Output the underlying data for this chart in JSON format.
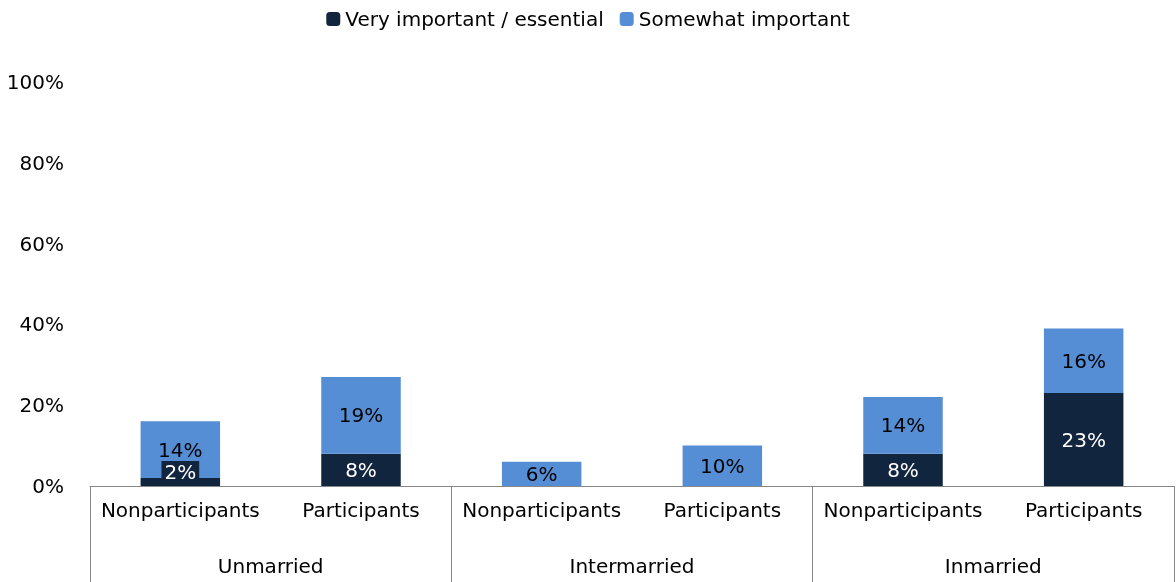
{
  "chart_data": {
    "type": "bar",
    "stacked": true,
    "categories": [
      "Nonparticipants",
      "Participants",
      "Nonparticipants",
      "Participants",
      "Nonparticipants",
      "Participants"
    ],
    "annotations": [
      "Unmarried",
      "Intermarried",
      "Inmarried"
    ],
    "series": [
      {
        "name": "Very important / essential",
        "color": "#12253f",
        "values": [
          2,
          8,
          0,
          0,
          8,
          23
        ],
        "value_labels": [
          "2%",
          "8%",
          null,
          null,
          "8%",
          "23%"
        ]
      },
      {
        "name": "Somewhat important",
        "color": "#558ed5",
        "values": [
          14,
          19,
          6,
          10,
          14,
          16
        ],
        "value_labels": [
          "14%",
          "19%",
          "6%",
          "10%",
          "14%",
          "16%"
        ]
      }
    ],
    "ylim": [
      0,
      100
    ],
    "yticks": [
      {
        "value": 0,
        "label": "0%"
      },
      {
        "value": 20,
        "label": "20%"
      },
      {
        "value": 40,
        "label": "40%"
      },
      {
        "value": 60,
        "label": "60%"
      },
      {
        "value": 80,
        "label": "80%"
      },
      {
        "value": 100,
        "label": "100%"
      }
    ],
    "grid": false,
    "legend": "top"
  }
}
